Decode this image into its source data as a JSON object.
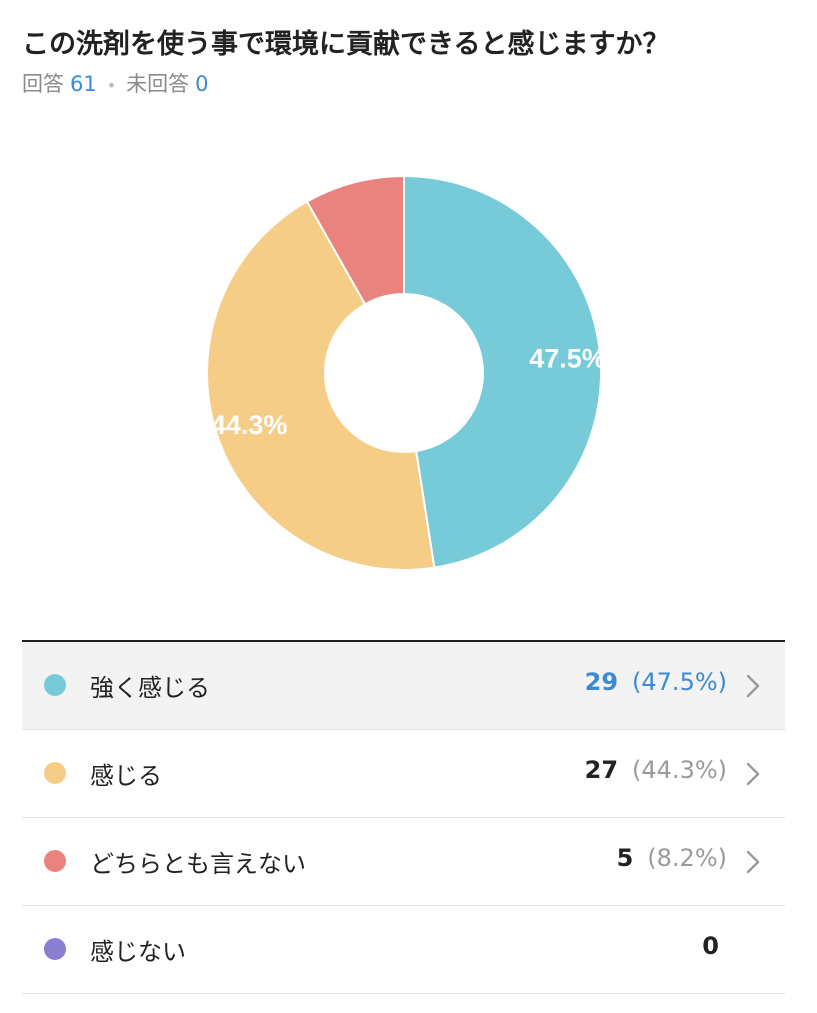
{
  "question": {
    "title": "この洗剤を使う事で環境に貢献できると感じますか？",
    "answered_label": "回答",
    "answered_count": "61",
    "unanswered_label": "未回答",
    "unanswered_count": "0"
  },
  "chart_data": {
    "type": "pie",
    "style": "donut",
    "categories": [
      "強く感じる",
      "感じる",
      "どちらとも言えない",
      "感じない"
    ],
    "values": [
      29,
      27,
      5,
      0
    ],
    "percents": [
      47.5,
      44.3,
      8.2,
      0
    ],
    "slice_labels": [
      "47.5%",
      "44.3%",
      "",
      ""
    ],
    "colors": [
      "#77cad7",
      "#f6cd87",
      "#e9837d",
      "#8b7fd1"
    ]
  },
  "legend": [
    {
      "label": "強く感じる",
      "count": "29",
      "percent": "(47.5%)",
      "color": "#77cad7",
      "selected": true,
      "has_chevron": true
    },
    {
      "label": "感じる",
      "count": "27",
      "percent": "(44.3%)",
      "color": "#f6cd87",
      "selected": false,
      "has_chevron": true
    },
    {
      "label": "どちらとも言えない",
      "count": "5",
      "percent": "(8.2%)",
      "color": "#e9837d",
      "selected": false,
      "has_chevron": true
    },
    {
      "label": "感じない",
      "count": "0",
      "percent": "",
      "color": "#8b7fd1",
      "selected": false,
      "has_chevron": false
    }
  ]
}
